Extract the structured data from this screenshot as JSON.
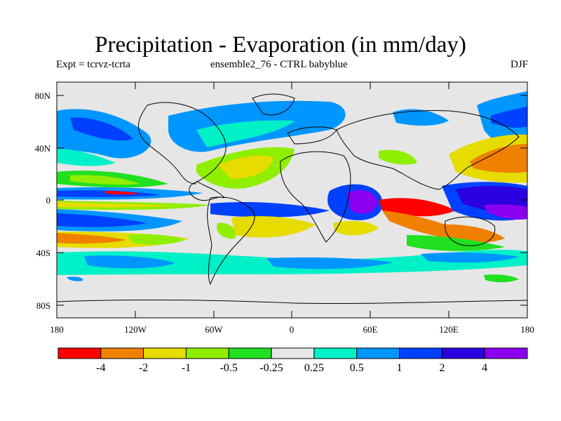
{
  "title": "Precipitation - Evaporation (in mm/day)",
  "subtitle_left": "Expt = tcrvz-tcrta",
  "subtitle_center": "ensemble2_76 - CTRL babyblue",
  "subtitle_right": "DJF",
  "map": {
    "lat_ticks": [
      "80N",
      "40N",
      "0",
      "40S",
      "80S"
    ],
    "lon_ticks": [
      "180",
      "120W",
      "60W",
      "0",
      "60E",
      "120E",
      "180"
    ],
    "background_color": "#e6e6e6"
  },
  "colorbar": {
    "colors": [
      "#ff0000",
      "#f08000",
      "#e6dc00",
      "#90ee00",
      "#20e020",
      "#e6e6e6",
      "#00f0c8",
      "#0096ff",
      "#0040ff",
      "#2a00e0",
      "#8c00f0"
    ],
    "labels": [
      "-4",
      "-2",
      "-1",
      "-0.5",
      "-0.25",
      "0.25",
      "0.5",
      "1",
      "2",
      "4"
    ]
  }
}
